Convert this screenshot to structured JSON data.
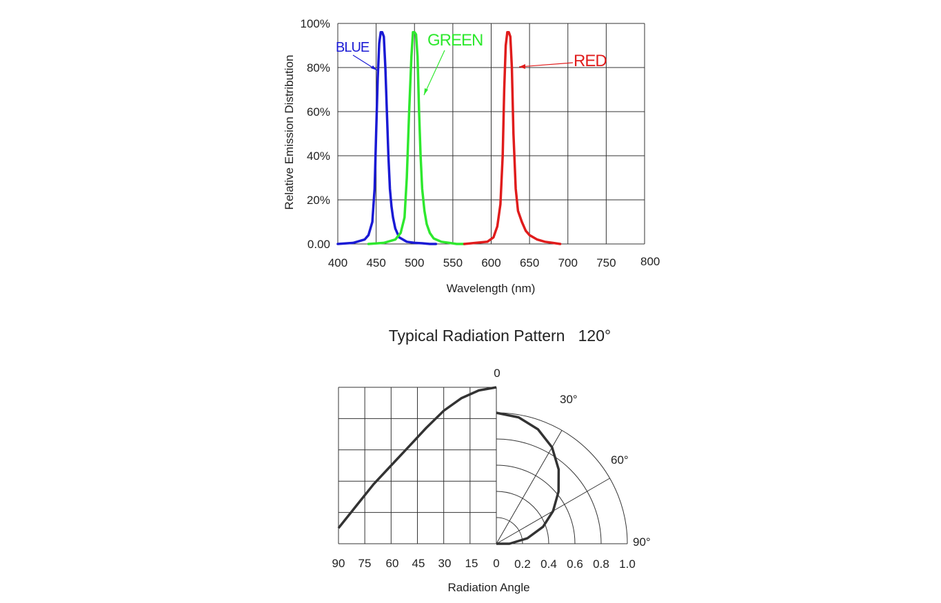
{
  "chart_data": [
    {
      "type": "line",
      "title": "",
      "xlabel": "Wavelength (nm)",
      "ylabel": "Relative Emission Distribution",
      "xlim": [
        400,
        800
      ],
      "ylim": [
        0,
        100
      ],
      "x_ticks": [
        "400",
        "450",
        "500",
        "550",
        "600",
        "650",
        "700",
        "750",
        "800"
      ],
      "y_ticks": [
        "0.00",
        "20%",
        "40%",
        "60%",
        "80%",
        "100%"
      ],
      "grid": true,
      "series": [
        {
          "name": "BLUE",
          "color": "#1a1ad4",
          "x": [
            400,
            420,
            435,
            440,
            445,
            448,
            450,
            452,
            454,
            456,
            458,
            460,
            462,
            464,
            466,
            468,
            470,
            472,
            475,
            480,
            490,
            500,
            510,
            520,
            528
          ],
          "y": [
            0,
            0.5,
            2,
            4,
            10,
            25,
            50,
            75,
            91,
            96,
            96,
            94,
            80,
            60,
            40,
            25,
            17,
            12,
            7,
            3,
            1,
            0.5,
            0.3,
            0,
            0
          ]
        },
        {
          "name": "GREEN",
          "color": "#2ee82e",
          "x": [
            440,
            460,
            475,
            482,
            487,
            490,
            493,
            496,
            498,
            500,
            502,
            504,
            506,
            508,
            510,
            513,
            516,
            520,
            525,
            535,
            545,
            555,
            565
          ],
          "y": [
            0,
            0.5,
            2,
            5,
            12,
            30,
            60,
            85,
            96,
            96,
            95,
            85,
            60,
            40,
            25,
            15,
            9,
            5,
            2.5,
            1,
            0.5,
            0,
            0
          ]
        },
        {
          "name": "RED",
          "color": "#e01c1c",
          "x": [
            565,
            580,
            595,
            603,
            608,
            612,
            615,
            617,
            619,
            621,
            623,
            625,
            627,
            629,
            632,
            635,
            640,
            645,
            650,
            660,
            670,
            680,
            690
          ],
          "y": [
            0,
            0.5,
            1,
            3,
            8,
            18,
            40,
            70,
            90,
            96,
            96,
            94,
            80,
            50,
            25,
            15,
            10,
            6,
            4,
            2,
            1,
            0.5,
            0
          ]
        }
      ]
    },
    {
      "type": "line",
      "title": "Typical Radiation Pattern   120°",
      "xlabel": "Radiation Angle",
      "ylabel": "",
      "left_ticks": [
        "90",
        "75",
        "60",
        "45",
        "30",
        "15",
        "0"
      ],
      "radius_ticks": [
        "0.2",
        "0.4",
        "0.6",
        "0.8",
        "1.0"
      ],
      "angle_labels": [
        "0",
        "30°",
        "60°",
        "90°"
      ],
      "rlim": [
        0,
        1
      ],
      "pattern": {
        "angle_deg": [
          0,
          10,
          20,
          30,
          40,
          50,
          60,
          70,
          80,
          90
        ],
        "relative_intensity": [
          1.0,
          0.98,
          0.93,
          0.85,
          0.74,
          0.62,
          0.5,
          0.38,
          0.24,
          0.1
        ]
      }
    }
  ]
}
